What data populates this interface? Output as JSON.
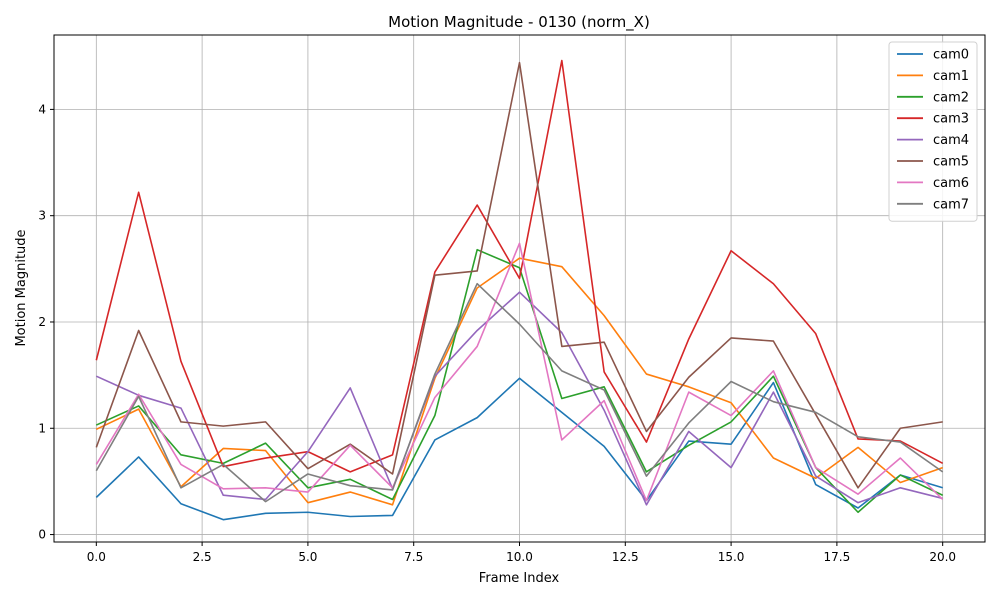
{
  "chart_data": {
    "type": "line",
    "title": "Motion Magnitude - 0130 (norm_X)",
    "xlabel": "Frame Index",
    "ylabel": "Motion Magnitude",
    "xlim": [
      -1,
      21
    ],
    "ylim": [
      -0.07,
      4.7
    ],
    "xticks": [
      0.0,
      2.5,
      5.0,
      7.5,
      10.0,
      12.5,
      15.0,
      17.5,
      20.0
    ],
    "xtick_labels": [
      "0.0",
      "2.5",
      "5.0",
      "7.5",
      "10.0",
      "12.5",
      "15.0",
      "17.5",
      "20.0"
    ],
    "yticks": [
      0,
      1,
      2,
      3,
      4
    ],
    "ytick_labels": [
      "0",
      "1",
      "2",
      "3",
      "4"
    ],
    "grid": true,
    "legend_position": "top-right",
    "x": [
      0,
      1,
      2,
      3,
      4,
      5,
      6,
      7,
      8,
      9,
      10,
      11,
      12,
      13,
      14,
      15,
      16,
      17,
      18,
      19,
      20
    ],
    "series": [
      {
        "name": "cam0",
        "color": "#1f77b4",
        "values": [
          0.35,
          0.73,
          0.29,
          0.14,
          0.2,
          0.21,
          0.17,
          0.18,
          0.89,
          1.1,
          1.47,
          1.15,
          0.83,
          0.32,
          0.88,
          0.85,
          1.43,
          0.47,
          0.25,
          0.56,
          0.44
        ]
      },
      {
        "name": "cam1",
        "color": "#ff7f0e",
        "values": [
          0.99,
          1.18,
          0.45,
          0.81,
          0.79,
          0.3,
          0.4,
          0.28,
          1.47,
          2.32,
          2.6,
          2.52,
          2.06,
          1.51,
          1.39,
          1.24,
          0.72,
          0.53,
          0.82,
          0.49,
          0.63
        ]
      },
      {
        "name": "cam2",
        "color": "#2ca02c",
        "values": [
          1.03,
          1.21,
          0.75,
          0.67,
          0.86,
          0.44,
          0.52,
          0.33,
          1.12,
          2.68,
          2.51,
          1.28,
          1.39,
          0.59,
          0.84,
          1.06,
          1.49,
          0.63,
          0.21,
          0.56,
          0.37
        ]
      },
      {
        "name": "cam3",
        "color": "#d62728",
        "values": [
          1.64,
          3.22,
          1.63,
          0.64,
          0.72,
          0.78,
          0.59,
          0.75,
          2.47,
          3.1,
          2.41,
          4.46,
          1.53,
          0.87,
          1.84,
          2.67,
          2.36,
          1.89,
          0.9,
          0.88,
          0.67
        ]
      },
      {
        "name": "cam4",
        "color": "#9467bd",
        "values": [
          1.49,
          1.31,
          1.19,
          0.37,
          0.33,
          0.78,
          1.38,
          0.43,
          1.49,
          1.92,
          2.28,
          1.9,
          1.17,
          0.28,
          0.97,
          0.63,
          1.34,
          0.55,
          0.3,
          0.44,
          0.34
        ]
      },
      {
        "name": "cam5",
        "color": "#8c564b",
        "values": [
          0.82,
          1.92,
          1.06,
          1.02,
          1.06,
          0.62,
          0.85,
          0.57,
          2.44,
          2.48,
          4.44,
          1.77,
          1.81,
          0.97,
          1.48,
          1.85,
          1.82,
          1.13,
          0.44,
          1.0,
          1.06
        ]
      },
      {
        "name": "cam6",
        "color": "#e377c2",
        "values": [
          0.66,
          1.32,
          0.66,
          0.43,
          0.44,
          0.4,
          0.84,
          0.44,
          1.29,
          1.77,
          2.74,
          0.89,
          1.26,
          0.32,
          1.34,
          1.12,
          1.54,
          0.63,
          0.38,
          0.72,
          0.33
        ]
      },
      {
        "name": "cam7",
        "color": "#7f7f7f",
        "values": [
          0.6,
          1.3,
          0.44,
          0.66,
          0.31,
          0.57,
          0.46,
          0.42,
          1.51,
          2.36,
          1.98,
          1.54,
          1.36,
          0.55,
          1.05,
          1.44,
          1.25,
          1.15,
          0.92,
          0.87,
          0.59
        ]
      }
    ]
  }
}
